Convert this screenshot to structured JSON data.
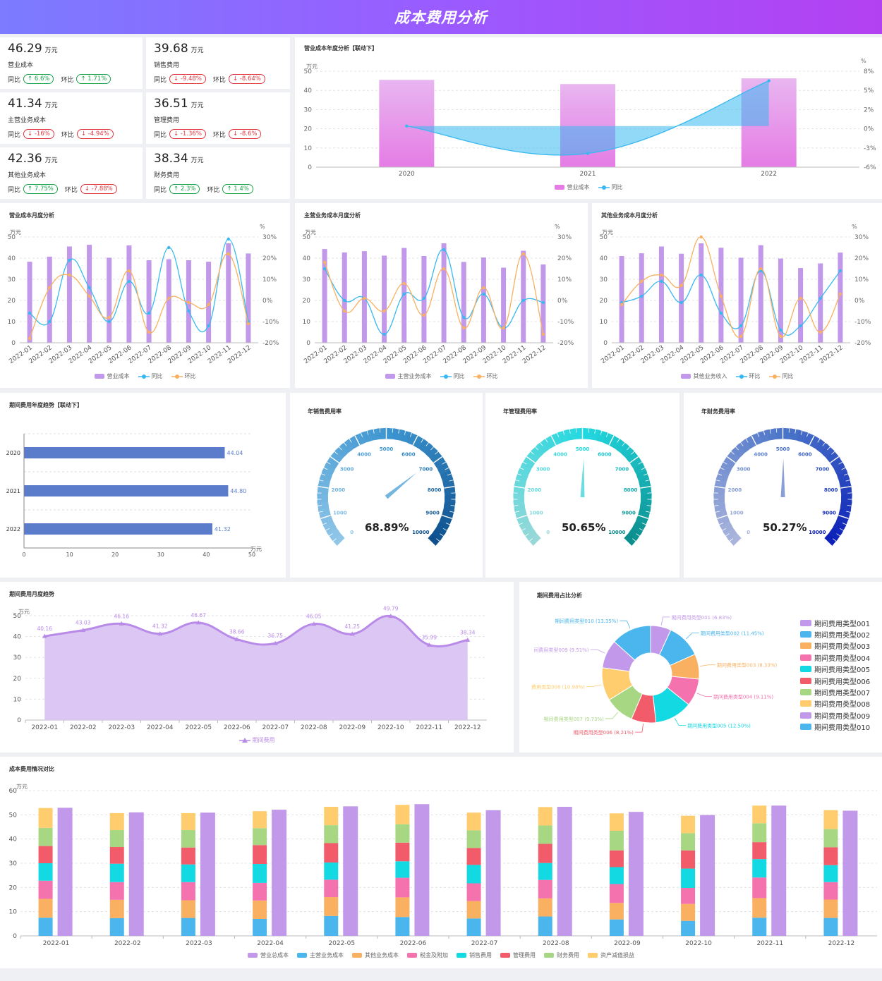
{
  "header": {
    "title": "成本费用分析"
  },
  "labels": {
    "tongbi": "同比",
    "huanbi": "环比",
    "unit_wan": "万元",
    "unit_pct": "%"
  },
  "kpis": [
    {
      "value": "46.29",
      "unit": "万元",
      "label": "营业成本",
      "yoy": "6.6%",
      "yoy_dir": "up",
      "mom": "1.71%",
      "mom_dir": "up"
    },
    {
      "value": "39.68",
      "unit": "万元",
      "label": "销售费用",
      "yoy": "-9.48%",
      "yoy_dir": "down",
      "mom": "-8.64%",
      "mom_dir": "down"
    },
    {
      "value": "41.34",
      "unit": "万元",
      "label": "主营业务成本",
      "yoy": "-16%",
      "yoy_dir": "down",
      "mom": "-4.94%",
      "mom_dir": "down"
    },
    {
      "value": "36.51",
      "unit": "万元",
      "label": "管理费用",
      "yoy": "-1.36%",
      "yoy_dir": "down",
      "mom": "-8.6%",
      "mom_dir": "down"
    },
    {
      "value": "42.36",
      "unit": "万元",
      "label": "其他业务成本",
      "yoy": "7.75%",
      "yoy_dir": "up",
      "mom": "-7.88%",
      "mom_dir": "down"
    },
    {
      "value": "38.34",
      "unit": "万元",
      "label": "财务费用",
      "yoy": "2.3%",
      "yoy_dir": "up",
      "mom": "1.4%",
      "mom_dir": "up"
    }
  ],
  "chart_data": [
    {
      "id": "annual",
      "type": "bar",
      "title": "营业成本年度分析【联动下】",
      "categories": [
        "2020",
        "2021",
        "2022"
      ],
      "ylabel": "万元",
      "y2label": "%",
      "ylim": [
        0,
        50
      ],
      "y2lim": [
        -6,
        8
      ],
      "series": [
        {
          "name": "营业成本",
          "type": "bar",
          "axis": "left",
          "values": [
            45.5,
            43.3,
            46.3
          ]
        },
        {
          "name": "同比",
          "type": "line",
          "axis": "right",
          "values": [
            0,
            -4,
            6.6
          ]
        }
      ],
      "colors": [
        "#e57ce5",
        "#39b8f0"
      ]
    },
    {
      "id": "m1",
      "type": "bar",
      "title": "营业成本月度分析",
      "categories": [
        "2022-01",
        "2022-02",
        "2022-03",
        "2022-04",
        "2022-05",
        "2022-06",
        "2022-07",
        "2022-08",
        "2022-09",
        "2022-10",
        "2022-11",
        "2022-12"
      ],
      "ylabel": "万元",
      "y2label": "%",
      "ylim": [
        0,
        50
      ],
      "y2lim": [
        -20,
        30
      ],
      "series": [
        {
          "name": "营业成本",
          "type": "bar",
          "axis": "left",
          "values": [
            38.3,
            40.7,
            45.5,
            46.3,
            40.2,
            46.0,
            39.0,
            39.5,
            39.0,
            38.3,
            47.0,
            42.2
          ]
        },
        {
          "name": "同比",
          "type": "line",
          "axis": "right",
          "values": [
            -6,
            -10,
            19,
            6,
            -10,
            9,
            -6,
            25,
            -5,
            -12,
            29,
            -10
          ]
        },
        {
          "name": "环比",
          "type": "line",
          "axis": "right",
          "values": [
            -18,
            6,
            12,
            2,
            -8,
            14,
            -15,
            1,
            -1,
            -2,
            22,
            -11
          ]
        }
      ],
      "colors": [
        "#c299ea",
        "#39b8f0",
        "#f9b061"
      ]
    },
    {
      "id": "m2",
      "type": "bar",
      "title": "主营业务成本月度分析",
      "categories": [
        "2022-01",
        "2022-02",
        "2022-03",
        "2022-04",
        "2022-05",
        "2022-06",
        "2022-07",
        "2022-08",
        "2022-09",
        "2022-10",
        "2022-11",
        "2022-12"
      ],
      "ylabel": "万元",
      "y2label": "%",
      "ylim": [
        0,
        50
      ],
      "y2lim": [
        -20,
        30
      ],
      "series": [
        {
          "name": "主营业务成本",
          "type": "bar",
          "axis": "left",
          "values": [
            44.3,
            42.7,
            43.3,
            41.2,
            44.8,
            41.0,
            47.0,
            38.2,
            40.3,
            35.5,
            43.5,
            37.0
          ]
        },
        {
          "name": "同比",
          "type": "line",
          "axis": "right",
          "values": [
            15,
            0,
            1,
            -16,
            3,
            1,
            24,
            -8,
            3,
            -13,
            0,
            -1
          ]
        },
        {
          "name": "环比",
          "type": "line",
          "axis": "right",
          "values": [
            18,
            -5,
            1,
            -5,
            8,
            -7,
            15,
            -13,
            6,
            -13,
            22,
            -16
          ]
        }
      ],
      "colors": [
        "#c299ea",
        "#39b8f0",
        "#f9b061"
      ]
    },
    {
      "id": "m3",
      "type": "bar",
      "title": "其他业务成本月度分析",
      "categories": [
        "2022-01",
        "2022-02",
        "2022-03",
        "2022-04",
        "2022-05",
        "2022-06",
        "2022-07",
        "2022-08",
        "2022-09",
        "2022-10",
        "2022-11",
        "2022-12"
      ],
      "ylabel": "万元",
      "y2label": "%",
      "ylim": [
        0,
        50
      ],
      "y2lim": [
        -20,
        30
      ],
      "series": [
        {
          "name": "其他业务收入",
          "type": "bar",
          "axis": "left",
          "values": [
            41.0,
            42.3,
            45.5,
            42.1,
            47.0,
            44.9,
            40.2,
            46.1,
            39.8,
            35.3,
            37.5,
            42.6
          ]
        },
        {
          "name": "环比",
          "type": "line",
          "axis": "right",
          "values": [
            -1,
            2,
            9,
            -1,
            12,
            -6,
            -12,
            14,
            -14,
            -12,
            1,
            14
          ]
        },
        {
          "name": "同比",
          "type": "line",
          "axis": "right",
          "values": [
            -2,
            9,
            12,
            7,
            30,
            2,
            -17,
            15,
            -17,
            1,
            -15,
            3
          ]
        }
      ],
      "colors": [
        "#c299ea",
        "#39b8f0",
        "#f9b061"
      ]
    },
    {
      "id": "hbar",
      "type": "bar",
      "orientation": "horizontal",
      "title": "期间费用年度趋势【联动下】",
      "categories": [
        "2020",
        "2021",
        "2022"
      ],
      "values": [
        44.04,
        44.8,
        41.32
      ],
      "value_labels": [
        "44.04",
        "44.80",
        "41.32"
      ],
      "xlabel": "万元",
      "xlim": [
        0,
        50
      ],
      "color": "#5a7ccb"
    },
    {
      "id": "gauges",
      "type": "gauge",
      "items": [
        {
          "title": "年销售费用率",
          "value": 68.89,
          "label": "68.89%",
          "color_light": "#8fc6e8",
          "color_dark": "#0b4d8a",
          "color_mid": "#3d95d0"
        },
        {
          "title": "年管理费用率",
          "value": 50.65,
          "label": "50.65%",
          "color_light": "#99d8d8",
          "color_dark": "#0b8a8a",
          "color_mid": "#22d8e0"
        },
        {
          "title": "年财务费用率",
          "value": 50.27,
          "label": "50.27%",
          "color_light": "#a9b4dc",
          "color_dark": "#0a1db8",
          "color_mid": "#4a74c8"
        }
      ],
      "ticks": [
        "0",
        "1000",
        "2000",
        "3000",
        "4000",
        "5000",
        "6000",
        "7000",
        "8000",
        "9000",
        "10000"
      ]
    },
    {
      "id": "area",
      "type": "area",
      "title": "期间费用月度趋势",
      "categories": [
        "2022-01",
        "2022-02",
        "2022-03",
        "2022-04",
        "2022-05",
        "2022-06",
        "2022-07",
        "2022-08",
        "2022-09",
        "2022-10",
        "2022-11",
        "2022-12"
      ],
      "values": [
        40.16,
        43.03,
        46.16,
        41.32,
        46.67,
        38.66,
        36.75,
        46.05,
        41.25,
        49.79,
        35.99,
        38.34
      ],
      "value_labels": [
        "40.16",
        "43.03",
        "46.16",
        "41.32",
        "46.67",
        "38.66",
        "36.75",
        "46.05",
        "41.25",
        "49.79",
        "35.99",
        "38.34"
      ],
      "ylabel": "万元",
      "ylim": [
        0,
        50
      ],
      "series_name": "期间费用",
      "color": "#b98be8"
    },
    {
      "id": "pie",
      "type": "pie",
      "title": "期间费用占比分析",
      "slices": [
        {
          "name": "期间费用类型001",
          "value": 6.83,
          "label": "期间费用类型001 (6.83%)",
          "color": "#c299ea"
        },
        {
          "name": "期间费用类型002",
          "value": 11.45,
          "label": "期间费用类型002 (11.45%)",
          "color": "#4bb6ee"
        },
        {
          "name": "期间费用类型003",
          "value": 8.33,
          "label": "期间费用类型003 (8.33%)",
          "color": "#f9b061"
        },
        {
          "name": "期间费用类型004",
          "value": 9.11,
          "label": "期间费用类型004 (9.11%)",
          "color": "#f472ad"
        },
        {
          "name": "期间费用类型005",
          "value": 12.5,
          "label": "期间费用类型005 (12.50%)",
          "color": "#12d9e2"
        },
        {
          "name": "期间费用类型006",
          "value": 8.21,
          "label": "期间费用类型006 (8.21%)",
          "color": "#f25b6a"
        },
        {
          "name": "期间费用类型007",
          "value": 9.73,
          "label": "期间费用类型007 (9.73%)",
          "color": "#a8d784"
        },
        {
          "name": "期间费用类型008",
          "value": 10.98,
          "label": "费用类型008 (10.98%)",
          "color": "#ffcd6e"
        },
        {
          "name": "期间费用类型009",
          "value": 9.51,
          "label": "间费用类型009 (9.51%)",
          "color": "#c299ea"
        },
        {
          "name": "期间费用类型010",
          "value": 13.35,
          "label": "期间费用类型010 (13.35%)",
          "color": "#4bb6ee"
        }
      ]
    },
    {
      "id": "stack",
      "type": "bar",
      "title": "成本费用情况对比",
      "categories": [
        "2022-01",
        "2022-02",
        "2022-03",
        "2022-04",
        "2022-05",
        "2022-06",
        "2022-07",
        "2022-08",
        "2022-09",
        "2022-10",
        "2022-11",
        "2022-12"
      ],
      "ylabel": "万元",
      "ylim": [
        0,
        60
      ],
      "total": {
        "name": "营业总成本",
        "values": [
          52.9,
          51.0,
          50.9,
          52.1,
          53.5,
          54.4,
          51.9,
          53.3,
          51.2,
          49.9,
          53.8,
          51.7
        ],
        "color": "#c299ea"
      },
      "stack_series": [
        {
          "name": "主营业务成本",
          "values": [
            7.5,
            7.3,
            7.4,
            7.0,
            8.2,
            7.8,
            7.2,
            8.0,
            6.8,
            6.2,
            7.5,
            7.4
          ],
          "color": "#4bb6ee"
        },
        {
          "name": "其他业务成本",
          "values": [
            7.8,
            7.6,
            7.3,
            7.6,
            7.8,
            8.1,
            7.2,
            7.5,
            6.8,
            7.0,
            8.1,
            7.6
          ],
          "color": "#f9b061"
        },
        {
          "name": "税金及附加",
          "values": [
            7.5,
            7.3,
            7.5,
            7.3,
            7.2,
            8.1,
            7.3,
            7.6,
            7.8,
            6.6,
            8.5,
            7.2
          ],
          "color": "#f472ad"
        },
        {
          "name": "销售费用",
          "values": [
            7.2,
            7.6,
            7.3,
            7.8,
            7.1,
            6.8,
            7.6,
            7.0,
            7.0,
            8.0,
            7.6,
            7.0
          ],
          "color": "#12d9e2"
        },
        {
          "name": "管理费用",
          "values": [
            7.1,
            6.9,
            7.0,
            7.8,
            8.0,
            7.7,
            7.0,
            7.9,
            6.9,
            7.5,
            7.0,
            7.4
          ],
          "color": "#f25b6a"
        },
        {
          "name": "财务费用",
          "values": [
            7.5,
            7.0,
            7.2,
            7.0,
            7.4,
            7.6,
            7.3,
            7.6,
            8.1,
            7.1,
            7.8,
            7.5
          ],
          "color": "#a8d784"
        },
        {
          "name": "资产减值损益",
          "values": [
            8.2,
            7.0,
            7.0,
            7.0,
            7.6,
            8.0,
            7.3,
            7.6,
            7.2,
            7.2,
            7.3,
            7.8
          ],
          "color": "#ffcd6e"
        }
      ]
    }
  ]
}
